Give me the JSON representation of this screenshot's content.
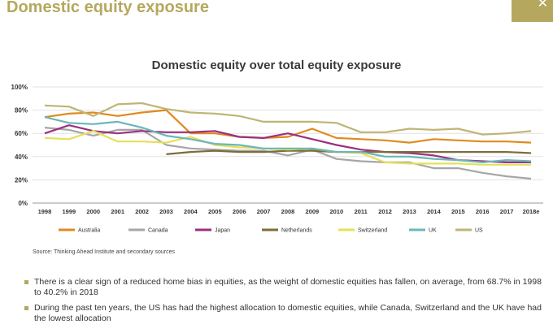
{
  "header": {
    "title": "Domestic equity exposure"
  },
  "chart_data": {
    "type": "line",
    "title": "Domestic equity over total equity exposure",
    "categories": [
      "1998",
      "1999",
      "2000",
      "2001",
      "2002",
      "2003",
      "2004",
      "2005",
      "2006",
      "2007",
      "2008",
      "2009",
      "2010",
      "2011",
      "2012",
      "2013",
      "2014",
      "2015",
      "2016",
      "2017",
      "2018e"
    ],
    "y_ticks": [
      "0%",
      "20%",
      "40%",
      "60%",
      "80%",
      "100%"
    ],
    "ylim": [
      0,
      100
    ],
    "grid": true,
    "legend_position": "bottom",
    "series": [
      {
        "name": "Australia",
        "color": "#e08a1e",
        "values": [
          74,
          77,
          78,
          75,
          78,
          80,
          60,
          60,
          57,
          56,
          57,
          64,
          56,
          55,
          54,
          52,
          55,
          54,
          53,
          53,
          52
        ]
      },
      {
        "name": "Canada",
        "color": "#a6a6a6",
        "values": [
          65,
          63,
          58,
          63,
          63,
          50,
          47,
          46,
          45,
          45,
          41,
          46,
          38,
          36,
          35,
          35,
          30,
          30,
          26,
          23,
          21
        ]
      },
      {
        "name": "Japan",
        "color": "#9b2f80",
        "values": [
          60,
          67,
          62,
          60,
          62,
          61,
          61,
          62,
          57,
          56,
          60,
          55,
          50,
          46,
          44,
          43,
          41,
          37,
          36,
          35,
          35
        ]
      },
      {
        "name": "Netherlands",
        "color": "#7d6d3c",
        "values": [
          null,
          null,
          null,
          null,
          null,
          42,
          44,
          45,
          44,
          44,
          45,
          45,
          44,
          44,
          44,
          44,
          44,
          44,
          44,
          44,
          43
        ]
      },
      {
        "name": "Switzerland",
        "color": "#e5e05a",
        "values": [
          56,
          55,
          62,
          53,
          53,
          52,
          57,
          50,
          48,
          47,
          46,
          47,
          44,
          43,
          35,
          34,
          34,
          34,
          33,
          33,
          33
        ]
      },
      {
        "name": "UK",
        "color": "#6bb7b7",
        "values": [
          74,
          69,
          68,
          70,
          65,
          58,
          55,
          51,
          50,
          47,
          47,
          47,
          44,
          44,
          40,
          40,
          38,
          37,
          35,
          37,
          36
        ]
      },
      {
        "name": "US",
        "color": "#bfb575",
        "values": [
          84,
          83,
          75,
          85,
          86,
          81,
          78,
          77,
          75,
          70,
          70,
          70,
          69,
          61,
          61,
          64,
          63,
          64,
          59,
          60,
          62
        ]
      }
    ]
  },
  "source": "Source: Thinking Ahead Institute and secondary sources",
  "bullets": [
    "There is a clear sign of a reduced home bias in equities, as the weight of domestic equities has fallen, on average, from 68.7% in 1998 to 40.2% in 2018",
    "During the past ten years, the US has had the highest allocation to domestic equities, while Canada, Switzerland and the UK have had the lowest allocation"
  ]
}
